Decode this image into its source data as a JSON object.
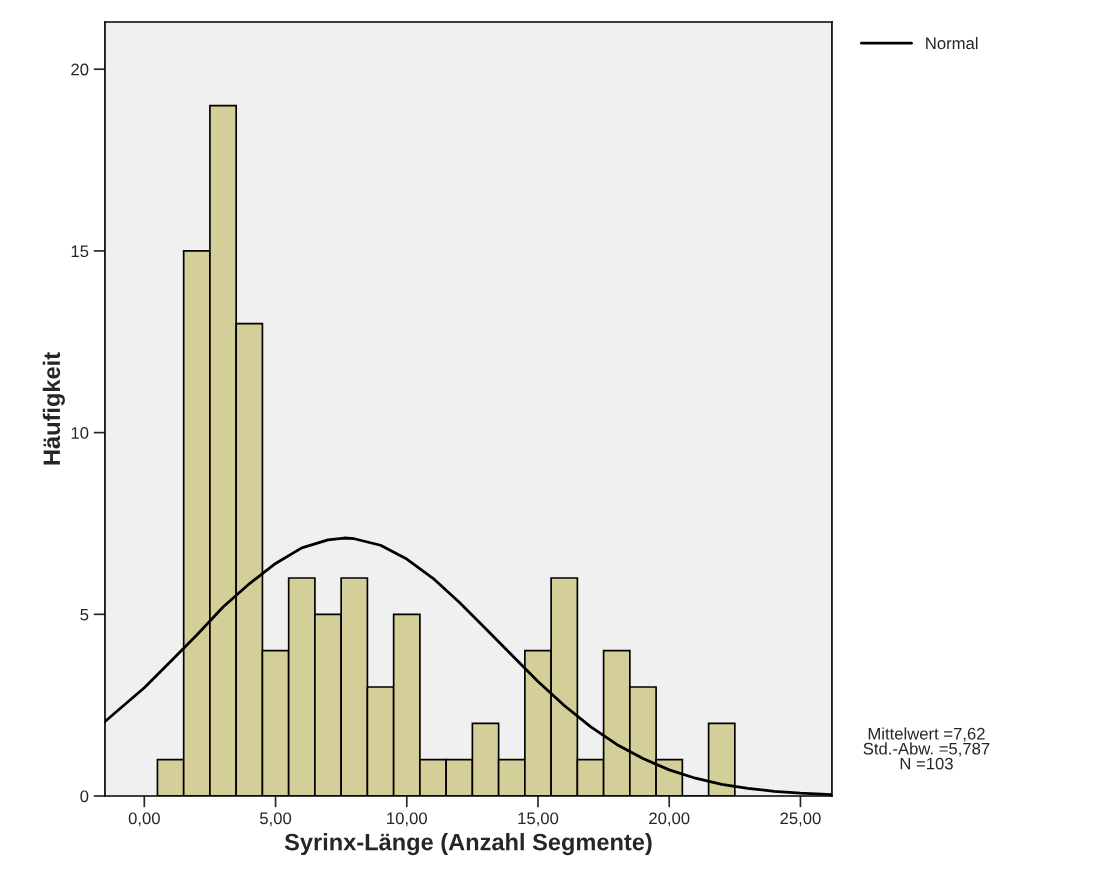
{
  "chart_data": {
    "type": "histogram",
    "xlabel": "Syrinx-Länge (Anzahl Segmente)",
    "ylabel": "Häufigkeit",
    "bins": [
      0.5,
      1.5,
      2.5,
      3.5,
      4.5,
      5.5,
      6.5,
      7.5,
      8.5,
      9.5,
      10.5,
      11.5,
      12.5,
      13.5,
      14.5,
      15.5,
      16.5,
      17.5,
      18.5,
      19.5,
      20.5,
      21.5,
      22.5
    ],
    "values": [
      1,
      15,
      19,
      13,
      4,
      6,
      5,
      6,
      3,
      5,
      1,
      1,
      2,
      1,
      4,
      6,
      1,
      4,
      3,
      1,
      0,
      2
    ],
    "color": "#d4cf98",
    "series": [
      {
        "name": "Normal",
        "type": "line",
        "color": "#000000",
        "x": [
          -1.5,
          0,
          1,
          2,
          3,
          4,
          5,
          6,
          7,
          7.62,
          8,
          9,
          10,
          11,
          12,
          13,
          14,
          15,
          16,
          17,
          18,
          19,
          20,
          21,
          22,
          23,
          24,
          25,
          26.2
        ],
        "values": [
          2.05,
          2.98,
          3.7,
          4.43,
          5.2,
          5.84,
          6.4,
          6.83,
          7.05,
          7.1,
          7.08,
          6.9,
          6.52,
          5.99,
          5.33,
          4.61,
          3.88,
          3.15,
          2.49,
          1.91,
          1.42,
          1.03,
          0.72,
          0.49,
          0.32,
          0.21,
          0.13,
          0.08,
          0.04
        ]
      }
    ],
    "xlim": [
      -1.5,
      26.2
    ],
    "ylim": [
      0,
      21.3
    ],
    "xticks": [
      {
        "value": 0,
        "label": "0,00"
      },
      {
        "value": 5,
        "label": "5,00"
      },
      {
        "value": 10,
        "label": "10,00"
      },
      {
        "value": 15,
        "label": "15,00"
      },
      {
        "value": 20,
        "label": "20,00"
      },
      {
        "value": 25,
        "label": "25,00"
      }
    ],
    "yticks": [
      0,
      5,
      10,
      15,
      20
    ],
    "grid": false,
    "legend": "top right",
    "annotations": [
      "Mittelwert =7,62\nStd.-Abw. =5,787\nN =103"
    ]
  }
}
